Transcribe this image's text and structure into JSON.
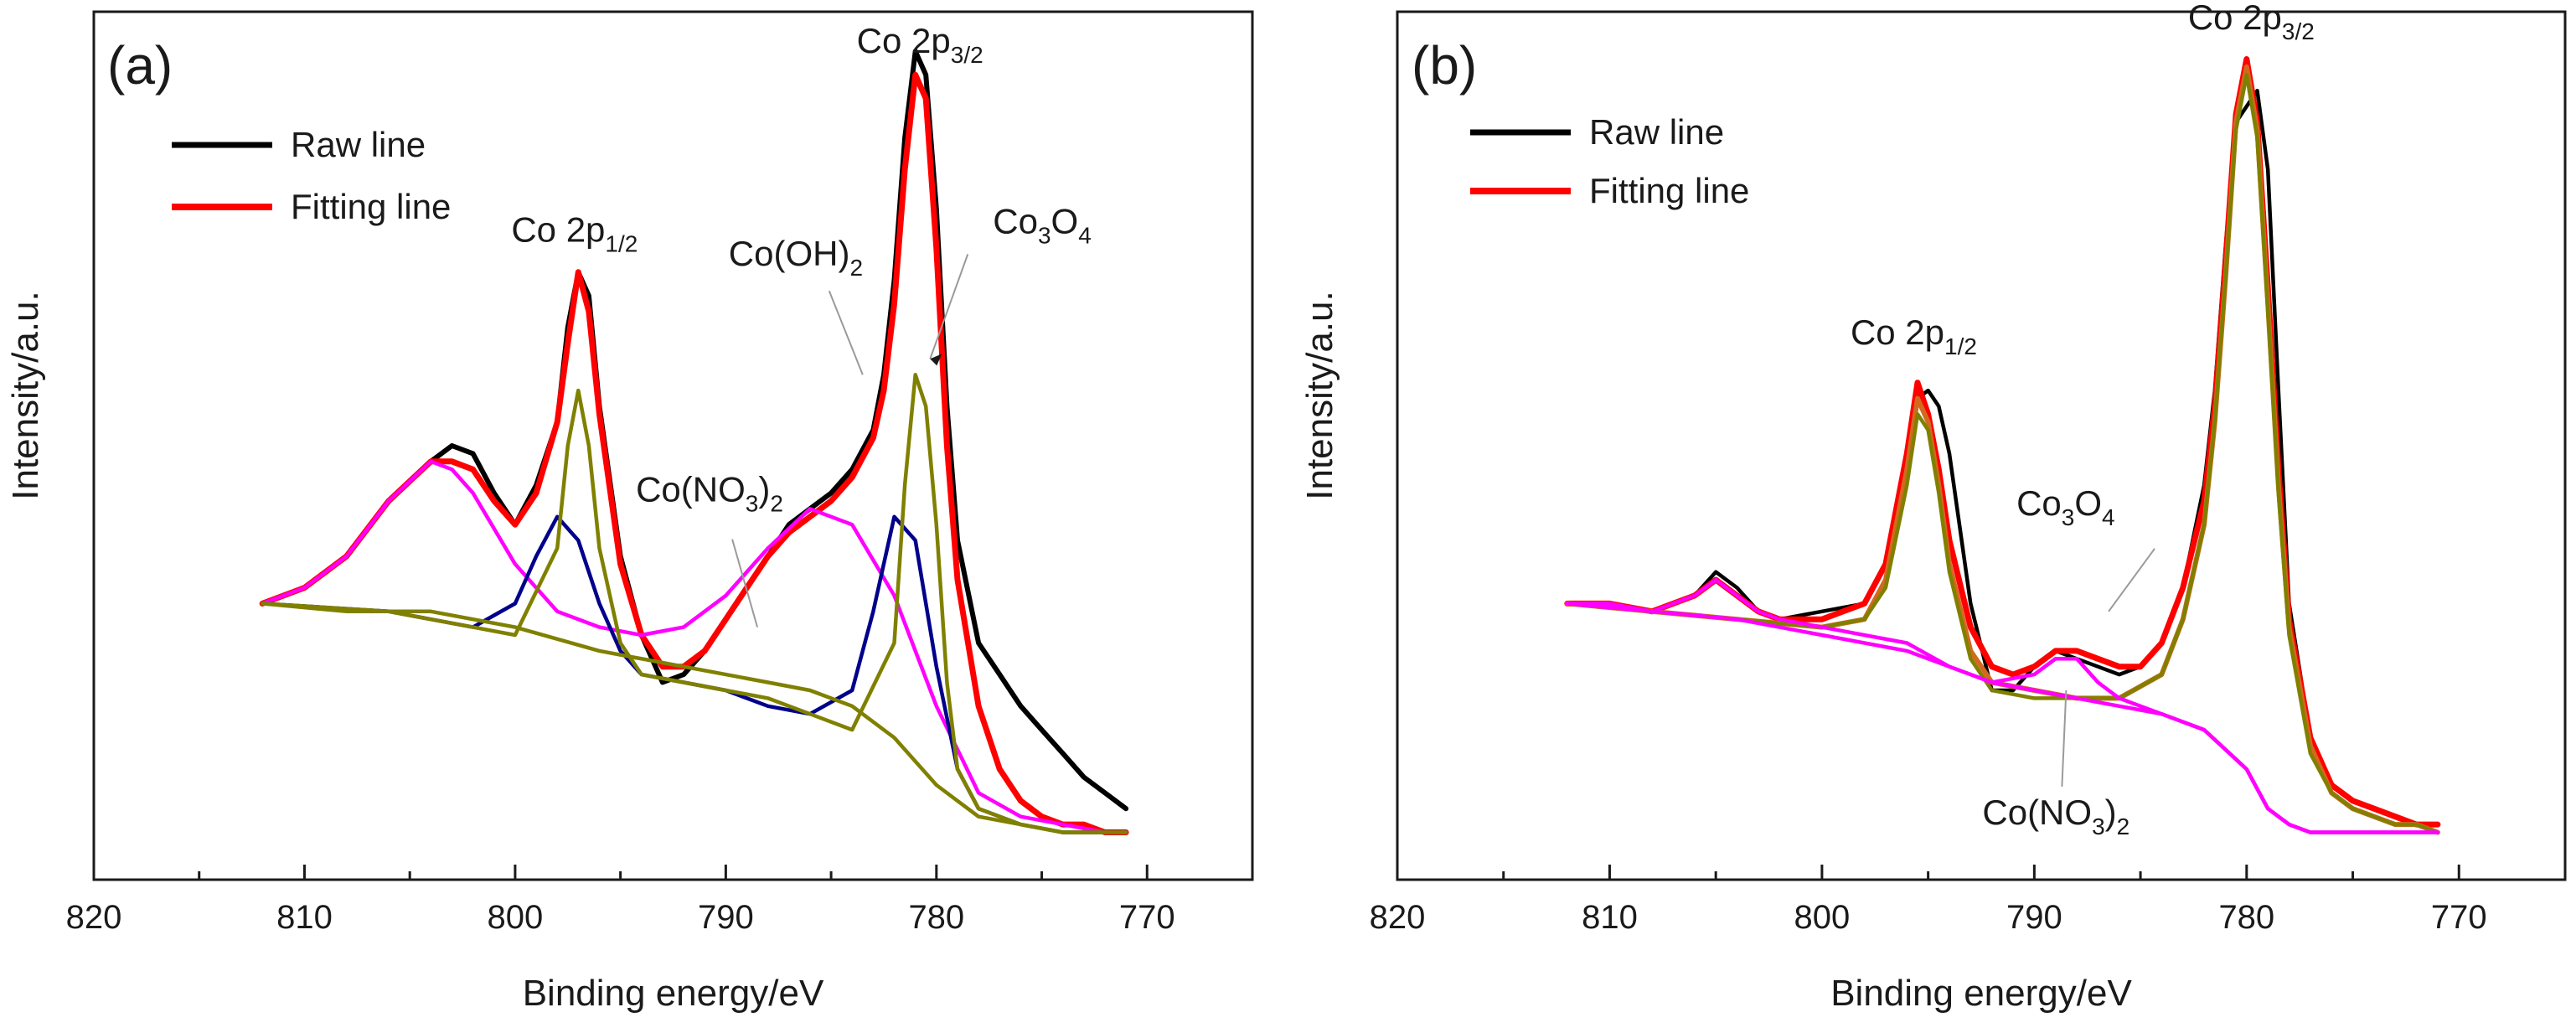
{
  "chart_data": [
    {
      "type": "line",
      "panel_label": "(a)",
      "xlabel": "Binding energy/eV",
      "ylabel": "Intensity/a.u.",
      "xlim": [
        820,
        765
      ],
      "ylim": [
        0,
        1.1
      ],
      "x_ticks": [
        "820",
        "810",
        "800",
        "790",
        "780",
        "770"
      ],
      "legend": [
        "Raw line",
        "Fitting line"
      ],
      "legend_position": "top-left",
      "annotations": [
        {
          "base": "Co 2p",
          "sub": "3/2",
          "after": "",
          "x": 781.0,
          "y": 1.0
        },
        {
          "base": "Co 2p",
          "sub": "1/2",
          "after": "",
          "x": 797.0,
          "y": 0.75
        },
        {
          "base": "Co(OH)",
          "sub": "2",
          "after": "",
          "x": 783.5,
          "y": 0.64
        },
        {
          "base": "Co",
          "sub": "3",
          "after": "O",
          "sub2": "4",
          "x": 780.3,
          "y": 0.66
        },
        {
          "base": "Co(NO",
          "sub": "3",
          "after": ")",
          "sub2": "2",
          "x": 788.5,
          "y": 0.32
        }
      ],
      "series": [
        {
          "name": "Raw line",
          "color": "#000000",
          "x": [
            812,
            810,
            808,
            806,
            804,
            803,
            802,
            801,
            800,
            799,
            798,
            797.5,
            797,
            796.5,
            796,
            795,
            794,
            793,
            792,
            791,
            790,
            789,
            788,
            787,
            786,
            785,
            784,
            783,
            782.5,
            782,
            781.5,
            781,
            780.5,
            780,
            779.5,
            779,
            778,
            777,
            776,
            775,
            774,
            773,
            772,
            771
          ],
          "y": [
            0.35,
            0.37,
            0.41,
            0.48,
            0.53,
            0.55,
            0.54,
            0.49,
            0.45,
            0.5,
            0.58,
            0.7,
            0.77,
            0.74,
            0.6,
            0.41,
            0.31,
            0.25,
            0.26,
            0.29,
            0.33,
            0.37,
            0.41,
            0.45,
            0.47,
            0.49,
            0.52,
            0.57,
            0.64,
            0.76,
            0.94,
            1.05,
            1.02,
            0.85,
            0.6,
            0.43,
            0.3,
            0.26,
            0.22,
            0.19,
            0.16,
            0.13,
            0.11,
            0.09
          ]
        },
        {
          "name": "Fitting line",
          "color": "#ff0000",
          "x": [
            812,
            810,
            808,
            806,
            804,
            803,
            802,
            801,
            800,
            799,
            798,
            797.5,
            797,
            796.5,
            796,
            795,
            794,
            793,
            792,
            791,
            790,
            789,
            788,
            787,
            786,
            785,
            784,
            783,
            782.5,
            782,
            781.5,
            781,
            780.5,
            780,
            779.5,
            779,
            778,
            777,
            776,
            775,
            774,
            773,
            772,
            771
          ],
          "y": [
            0.35,
            0.37,
            0.41,
            0.48,
            0.53,
            0.53,
            0.52,
            0.48,
            0.45,
            0.49,
            0.58,
            0.68,
            0.77,
            0.72,
            0.59,
            0.4,
            0.31,
            0.27,
            0.27,
            0.29,
            0.33,
            0.37,
            0.41,
            0.44,
            0.46,
            0.48,
            0.51,
            0.56,
            0.62,
            0.73,
            0.9,
            1.02,
            0.99,
            0.8,
            0.55,
            0.38,
            0.22,
            0.14,
            0.1,
            0.08,
            0.07,
            0.07,
            0.06,
            0.06
          ]
        },
        {
          "name": "Satellite fit",
          "color": "#ff00ff",
          "x": [
            812,
            810,
            808,
            806,
            804,
            803,
            802,
            800,
            798,
            796,
            794,
            792,
            790,
            788,
            786,
            784,
            782,
            780,
            778,
            776,
            774,
            772,
            771
          ],
          "y": [
            0.35,
            0.37,
            0.41,
            0.48,
            0.53,
            0.52,
            0.49,
            0.4,
            0.34,
            0.32,
            0.31,
            0.32,
            0.36,
            0.42,
            0.47,
            0.45,
            0.36,
            0.22,
            0.11,
            0.08,
            0.07,
            0.06,
            0.06
          ]
        },
        {
          "name": "Co(OH)2 fit",
          "color": "#00008b",
          "x": [
            812,
            806,
            802,
            800,
            799,
            798,
            797,
            796,
            795,
            794,
            792,
            790,
            788,
            786,
            784,
            783,
            782,
            781,
            780,
            779,
            778,
            776,
            774,
            772,
            771
          ],
          "y": [
            0.35,
            0.34,
            0.32,
            0.35,
            0.41,
            0.46,
            0.43,
            0.35,
            0.29,
            0.26,
            0.25,
            0.24,
            0.22,
            0.21,
            0.24,
            0.34,
            0.46,
            0.43,
            0.27,
            0.14,
            0.09,
            0.07,
            0.06,
            0.06,
            0.06
          ]
        },
        {
          "name": "Co3O4 fit",
          "color": "#808000",
          "x": [
            812,
            806,
            802,
            800,
            798,
            797.5,
            797,
            796.5,
            796,
            795,
            794,
            792,
            790,
            788,
            786,
            784,
            782,
            781.5,
            781,
            780.5,
            780,
            779.5,
            779,
            778,
            776,
            774,
            772,
            771
          ],
          "y": [
            0.35,
            0.34,
            0.32,
            0.31,
            0.42,
            0.55,
            0.62,
            0.55,
            0.42,
            0.3,
            0.26,
            0.25,
            0.24,
            0.23,
            0.21,
            0.19,
            0.3,
            0.5,
            0.64,
            0.6,
            0.45,
            0.25,
            0.14,
            0.09,
            0.07,
            0.06,
            0.06,
            0.06
          ]
        },
        {
          "name": "Background",
          "color": "#808000",
          "x": [
            812,
            808,
            804,
            800,
            796,
            792,
            790,
            788,
            786,
            784,
            782,
            780,
            778,
            776,
            774,
            772,
            771
          ],
          "y": [
            0.35,
            0.34,
            0.34,
            0.32,
            0.29,
            0.27,
            0.26,
            0.25,
            0.24,
            0.22,
            0.18,
            0.12,
            0.08,
            0.07,
            0.06,
            0.06,
            0.06
          ]
        }
      ]
    },
    {
      "type": "line",
      "panel_label": "(b)",
      "xlabel": "Binding energy/eV",
      "ylabel": "Intensity/a.u.",
      "xlim": [
        820,
        765
      ],
      "ylim": [
        0,
        1.1
      ],
      "x_ticks": [
        "820",
        "810",
        "800",
        "790",
        "780",
        "770"
      ],
      "legend": [
        "Raw line",
        "Fitting line"
      ],
      "legend_position": "top-left",
      "annotations": [
        {
          "base": "Co 2p",
          "sub": "3/2",
          "after": "",
          "x": 780.0,
          "y": 1.03
        },
        {
          "base": "Co 2p",
          "sub": "1/2",
          "after": "",
          "x": 795.5,
          "y": 0.62
        },
        {
          "base": "Co",
          "sub": "3",
          "after": "O",
          "sub2": "4",
          "x": 786.5,
          "y": 0.34
        },
        {
          "base": "Co(NO",
          "sub": "3",
          "after": ")",
          "sub2": "2",
          "x": 788.5,
          "y": 0.24
        }
      ],
      "series": [
        {
          "name": "Raw line",
          "color": "#000000",
          "x": [
            812,
            810,
            808,
            806,
            805,
            804,
            803,
            802,
            800,
            798,
            797,
            796,
            795.5,
            795,
            794.5,
            794,
            793,
            792,
            791,
            790,
            789,
            788,
            787,
            786,
            785,
            784,
            783,
            782,
            781.5,
            781,
            780.5,
            780,
            779.5,
            779,
            778.5,
            778,
            777,
            776,
            775,
            774,
            773,
            772,
            771
          ],
          "y": [
            0.35,
            0.35,
            0.34,
            0.36,
            0.39,
            0.37,
            0.34,
            0.33,
            0.34,
            0.35,
            0.4,
            0.52,
            0.61,
            0.62,
            0.6,
            0.54,
            0.35,
            0.24,
            0.24,
            0.27,
            0.29,
            0.28,
            0.27,
            0.26,
            0.27,
            0.3,
            0.37,
            0.5,
            0.62,
            0.8,
            0.96,
            0.98,
            1.0,
            0.9,
            0.62,
            0.35,
            0.18,
            0.12,
            0.1,
            0.09,
            0.08,
            0.07,
            0.06
          ]
        },
        {
          "name": "Fitting line",
          "color": "#ff0000",
          "x": [
            812,
            810,
            808,
            806,
            805,
            804,
            803,
            802,
            800,
            798,
            797,
            796,
            795.5,
            795,
            794.5,
            794,
            793,
            792,
            791,
            790,
            789,
            788,
            787,
            786,
            785,
            784,
            783,
            782,
            781.5,
            781,
            780.5,
            780,
            779.5,
            779,
            778.5,
            778,
            777,
            776,
            775,
            774,
            773,
            772,
            771
          ],
          "y": [
            0.35,
            0.35,
            0.34,
            0.36,
            0.38,
            0.36,
            0.34,
            0.33,
            0.33,
            0.35,
            0.4,
            0.54,
            0.63,
            0.59,
            0.52,
            0.43,
            0.32,
            0.27,
            0.26,
            0.27,
            0.29,
            0.29,
            0.28,
            0.27,
            0.27,
            0.3,
            0.37,
            0.48,
            0.6,
            0.78,
            0.97,
            1.04,
            0.96,
            0.75,
            0.52,
            0.33,
            0.18,
            0.12,
            0.1,
            0.09,
            0.08,
            0.07,
            0.07
          ]
        },
        {
          "name": "Co 2p fit",
          "color": "#d2691e",
          "x": [
            812,
            808,
            804,
            800,
            798,
            797,
            796,
            795.5,
            795,
            794.5,
            794,
            793,
            792,
            790,
            788,
            786,
            784,
            783,
            782,
            781.5,
            781,
            780.5,
            780,
            779.5,
            779,
            778.5,
            778,
            777,
            776,
            775,
            774,
            773,
            772,
            771
          ],
          "y": [
            0.35,
            0.34,
            0.33,
            0.32,
            0.33,
            0.38,
            0.52,
            0.61,
            0.58,
            0.5,
            0.4,
            0.29,
            0.25,
            0.24,
            0.23,
            0.23,
            0.26,
            0.33,
            0.45,
            0.58,
            0.76,
            0.96,
            1.03,
            0.95,
            0.73,
            0.5,
            0.32,
            0.17,
            0.11,
            0.09,
            0.08,
            0.07,
            0.07,
            0.06
          ]
        },
        {
          "name": "Co3O4 fit",
          "color": "#808000",
          "x": [
            812,
            808,
            804,
            800,
            798,
            797,
            796,
            795.5,
            795,
            794.5,
            794,
            793,
            792,
            790,
            788,
            786,
            784,
            783,
            782,
            781.5,
            781,
            780.5,
            780,
            779.5,
            779,
            778.5,
            778,
            777,
            776,
            775,
            774,
            773,
            772,
            771
          ],
          "y": [
            0.35,
            0.34,
            0.33,
            0.32,
            0.33,
            0.37,
            0.5,
            0.59,
            0.57,
            0.49,
            0.39,
            0.28,
            0.24,
            0.23,
            0.23,
            0.23,
            0.26,
            0.33,
            0.45,
            0.58,
            0.76,
            0.95,
            1.02,
            0.94,
            0.72,
            0.49,
            0.31,
            0.16,
            0.11,
            0.09,
            0.08,
            0.07,
            0.07,
            0.06
          ]
        },
        {
          "name": "Co(NO3)2 fit",
          "color": "#ff00ff",
          "x": [
            812,
            810,
            808,
            806,
            805,
            804,
            803,
            802,
            800,
            796,
            794,
            792,
            790,
            789,
            788,
            787,
            786,
            785,
            784,
            782,
            780,
            779,
            778,
            777,
            776,
            774,
            772,
            771
          ],
          "y": [
            0.35,
            0.35,
            0.34,
            0.36,
            0.38,
            0.36,
            0.34,
            0.33,
            0.32,
            0.3,
            0.27,
            0.25,
            0.26,
            0.28,
            0.28,
            0.25,
            0.23,
            0.22,
            0.21,
            0.19,
            0.14,
            0.09,
            0.07,
            0.06,
            0.06,
            0.06,
            0.06,
            0.06
          ]
        },
        {
          "name": "Background",
          "color": "#ff00ff",
          "x": [
            812,
            808,
            804,
            800,
            796,
            794,
            792,
            790,
            788,
            786,
            784,
            782,
            780,
            779,
            778,
            777,
            776,
            774,
            772,
            771
          ],
          "y": [
            0.35,
            0.34,
            0.33,
            0.31,
            0.29,
            0.27,
            0.25,
            0.24,
            0.23,
            0.22,
            0.21,
            0.19,
            0.14,
            0.09,
            0.07,
            0.06,
            0.06,
            0.06,
            0.06,
            0.06
          ]
        }
      ]
    }
  ]
}
